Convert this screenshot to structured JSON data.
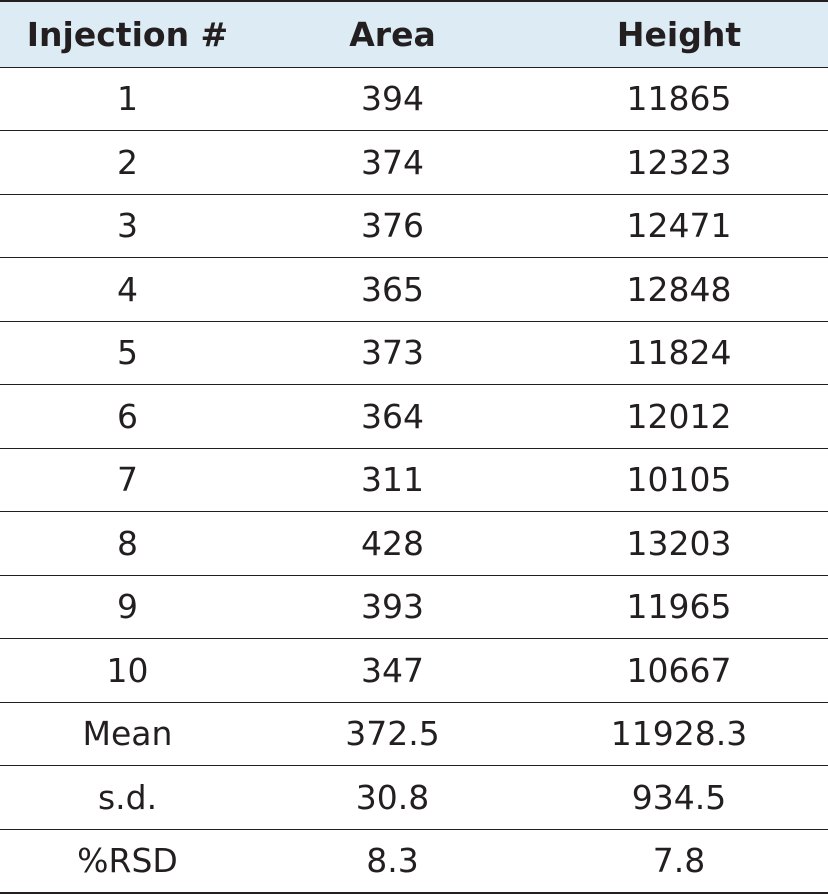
{
  "table": {
    "headers": [
      "Injection #",
      "Area",
      "Height"
    ],
    "rows": [
      [
        "1",
        "394",
        "11865"
      ],
      [
        "2",
        "374",
        "12323"
      ],
      [
        "3",
        "376",
        "12471"
      ],
      [
        "4",
        "365",
        "12848"
      ],
      [
        "5",
        "373",
        "11824"
      ],
      [
        "6",
        "364",
        "12012"
      ],
      [
        "7",
        "311",
        "10105"
      ],
      [
        "8",
        "428",
        "13203"
      ],
      [
        "9",
        "393",
        "11965"
      ],
      [
        "10",
        "347",
        "10667"
      ],
      [
        "Mean",
        "372.5",
        "11928.3"
      ],
      [
        "s.d.",
        "30.8",
        "934.5"
      ],
      [
        "%RSD",
        "8.3",
        "7.8"
      ]
    ]
  },
  "colors": {
    "header_background": "#dcebf4",
    "text": "#231f20",
    "rule": "#231f20"
  }
}
